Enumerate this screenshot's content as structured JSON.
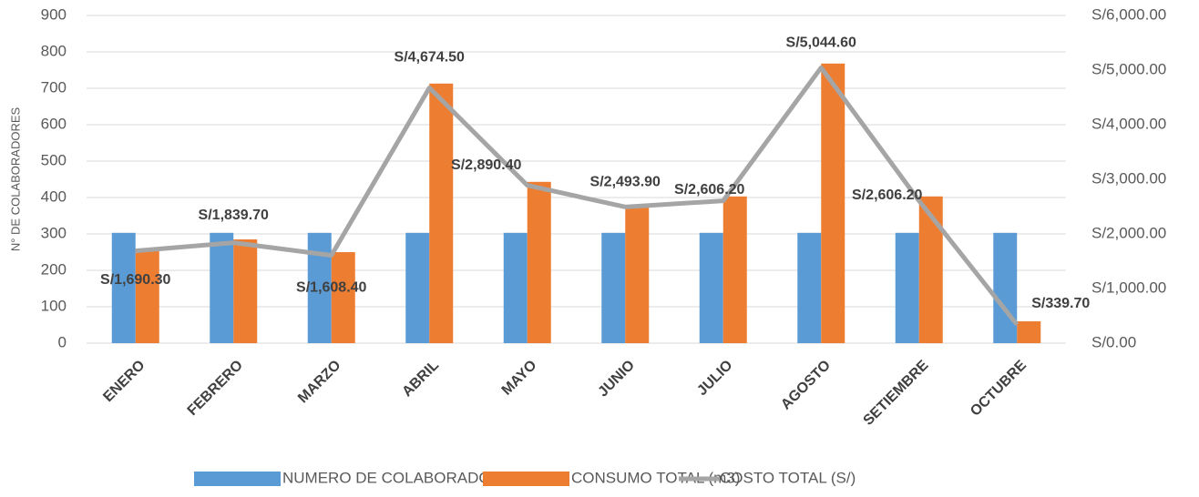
{
  "chart_data": {
    "type": "combo",
    "y_label": "N° DE COLABORADORES",
    "categories": [
      "ENERO",
      "FEBRERO",
      "MARZO",
      "ABRIL",
      "MAYO",
      "JUNIO",
      "JULIO",
      "AGOSTO",
      "SETIEMBRE",
      "OCTUBRE"
    ],
    "ylim": [
      0,
      900
    ],
    "yticks": [
      0,
      100,
      200,
      300,
      400,
      500,
      600,
      700,
      800,
      900
    ],
    "y2lim": [
      0,
      6000
    ],
    "y2ticks": [
      {
        "value": 0,
        "label": "S/0.00"
      },
      {
        "value": 1000,
        "label": "S/1,000.00"
      },
      {
        "value": 2000,
        "label": "S/2,000.00"
      },
      {
        "value": 3000,
        "label": "S/3,000.00"
      },
      {
        "value": 4000,
        "label": "S/4,000.00"
      },
      {
        "value": 5000,
        "label": "S/5,000.00"
      },
      {
        "value": 6000,
        "label": "S/6,000.00"
      }
    ],
    "grid": true,
    "legend": "bottom",
    "series": [
      {
        "name": "NUMERO DE COLABORADORES",
        "type": "bar",
        "color": "#5b9bd5",
        "values": [
          303,
          303,
          303,
          303,
          303,
          303,
          303,
          303,
          303,
          303
        ]
      },
      {
        "name": "CONSUMO TOTAL (m3)",
        "type": "bar",
        "color": "#ed7d31",
        "values": [
          260,
          285,
          250,
          713,
          443,
          378,
          403,
          768,
          403,
          60
        ]
      },
      {
        "name": "COSTO TOTAL (S/)",
        "type": "line",
        "axis": "y2",
        "color": "#a5a5a5",
        "values": [
          1690.3,
          1839.7,
          1608.4,
          4674.5,
          2890.4,
          2493.9,
          2606.2,
          5044.6,
          2606.2,
          339.7
        ],
        "value_labels": [
          "S/1,690.30",
          "S/1,839.70",
          "S/1,608.40",
          "S/4,674.50",
          "S/2,890.40",
          "S/2,493.90",
          "S/2,606.20",
          "S/5,044.60",
          "S/2,606.20",
          "S/339.70"
        ]
      }
    ]
  }
}
